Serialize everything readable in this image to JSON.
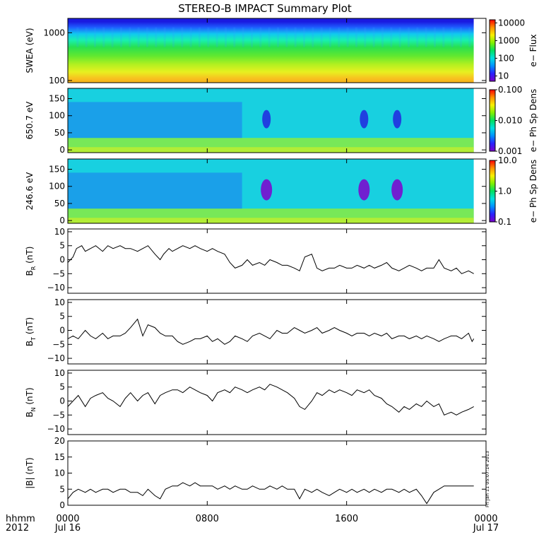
{
  "title": "STEREO-B IMPACT Summary Plot",
  "stamp": "Fri Jan 11 05:07:14 2013",
  "time_axis": {
    "corner_top": "hhmm",
    "corner_bottom": "2012",
    "ticks": [
      {
        "t": 0,
        "label": "0000",
        "sub": "Jul 16"
      },
      {
        "t": 8,
        "label": "0800",
        "sub": ""
      },
      {
        "t": 16,
        "label": "1600",
        "sub": ""
      },
      {
        "t": 24,
        "label": "0000",
        "sub": "Jul 17"
      }
    ],
    "range_hours": [
      0,
      24
    ],
    "data_end_hours": 23.3
  },
  "chart_data": [
    {
      "type": "heatmap",
      "ylabel": "SWEA (eV)",
      "yscale": "log",
      "ylim": [
        90,
        2000
      ],
      "yticks": [
        {
          "v": 100,
          "label": "100"
        },
        {
          "v": 1000,
          "label": "1000"
        }
      ],
      "colorbar": {
        "label": "e− Flux",
        "scale": "log",
        "range": [
          5,
          15000
        ],
        "ticks": [
          {
            "v": 10,
            "label": "10"
          },
          {
            "v": 100,
            "label": "100"
          },
          {
            "v": 1000,
            "label": "1000"
          },
          {
            "v": 10000,
            "label": "10000"
          }
        ]
      },
      "color_by_energy": [
        {
          "energy": 1700,
          "color": "#1a1ae0"
        },
        {
          "energy": 1300,
          "color": "#1e5cff"
        },
        {
          "energy": 950,
          "color": "#10c8f0"
        },
        {
          "energy": 700,
          "color": "#18f0b0"
        },
        {
          "energy": 500,
          "color": "#28e050"
        },
        {
          "energy": 330,
          "color": "#60e830"
        },
        {
          "energy": 220,
          "color": "#b0f020"
        },
        {
          "energy": 150,
          "color": "#e8f020"
        },
        {
          "energy": 110,
          "color": "#f8c020"
        },
        {
          "energy": 90,
          "color": "#f8b018"
        }
      ]
    },
    {
      "type": "heatmap",
      "ylabel": "650.7 eV",
      "ylim": [
        -8,
        180
      ],
      "yticks": [
        {
          "v": 0,
          "label": "0"
        },
        {
          "v": 50,
          "label": "50"
        },
        {
          "v": 100,
          "label": "100"
        },
        {
          "v": 150,
          "label": "150"
        }
      ],
      "colorbar": {
        "label": "e− Ph Sp Dens",
        "scale": "log",
        "range": [
          0.001,
          0.1
        ],
        "ticks": [
          {
            "v": 0.001,
            "label": "0.001"
          },
          {
            "v": 0.01,
            "label": "0.010"
          },
          {
            "v": 0.1,
            "label": "0.100"
          }
        ]
      },
      "background_color": "#18d0e0",
      "low_pitch_band_color": "#78e858",
      "dropouts_hours": [
        11.4,
        17.0,
        18.9
      ]
    },
    {
      "type": "heatmap",
      "ylabel": "246.6 eV",
      "ylim": [
        -8,
        180
      ],
      "yticks": [
        {
          "v": 0,
          "label": "0"
        },
        {
          "v": 50,
          "label": "50"
        },
        {
          "v": 100,
          "label": "100"
        },
        {
          "v": 150,
          "label": "150"
        }
      ],
      "colorbar": {
        "label": "e− Ph Sp Dens",
        "scale": "log",
        "range": [
          0.1,
          10
        ],
        "ticks": [
          {
            "v": 0.1,
            "label": "0.1"
          },
          {
            "v": 1,
            "label": "1.0"
          },
          {
            "v": 10,
            "label": "10.0"
          }
        ]
      },
      "background_color": "#18d0e0",
      "low_pitch_band_color": "#78e858",
      "dropouts_hours": [
        11.4,
        17.0,
        18.9
      ]
    },
    {
      "type": "line",
      "ylabel_main": "B",
      "ylabel_sub": "R",
      "ylabel_unit": "(nT)",
      "ylim": [
        -12,
        11
      ],
      "yticks": [
        {
          "v": -10,
          "label": "−10"
        },
        {
          "v": -5,
          "label": "−5"
        },
        {
          "v": 0,
          "label": "0"
        },
        {
          "v": 5,
          "label": "5"
        },
        {
          "v": 10,
          "label": "10"
        }
      ],
      "x": [
        0,
        0.3,
        0.5,
        0.8,
        1,
        1.3,
        1.6,
        2,
        2.3,
        2.6,
        3,
        3.3,
        3.6,
        4,
        4.3,
        4.6,
        5,
        5.3,
        5.5,
        5.8,
        6,
        6.3,
        6.6,
        7,
        7.3,
        7.6,
        8,
        8.3,
        8.6,
        9,
        9.3,
        9.6,
        10,
        10.3,
        10.6,
        11,
        11.3,
        11.6,
        12,
        12.3,
        12.6,
        13,
        13.3,
        13.6,
        14,
        14.3,
        14.6,
        15,
        15.3,
        15.6,
        16,
        16.3,
        16.6,
        17,
        17.3,
        17.6,
        18,
        18.3,
        18.6,
        19,
        19.3,
        19.6,
        20,
        20.3,
        20.6,
        21,
        21.3,
        21.6,
        22,
        22.3,
        22.6,
        23,
        23.3
      ],
      "values": [
        -1,
        1,
        4,
        5,
        3,
        4,
        5,
        3,
        5,
        4,
        5,
        4,
        4,
        3,
        4,
        5,
        2,
        0,
        2,
        4,
        3,
        4,
        5,
        4,
        5,
        4,
        3,
        4,
        3,
        2,
        -1,
        -3,
        -2,
        0,
        -2,
        -1,
        -2,
        0,
        -1,
        -2,
        -2,
        -3,
        -4,
        1,
        2,
        -3,
        -4,
        -3,
        -3,
        -2,
        -3,
        -3,
        -2,
        -3,
        -2,
        -3,
        -2,
        -1,
        -3,
        -4,
        -3,
        -2,
        -3,
        -4,
        -3,
        -3,
        0,
        -3,
        -4,
        -3,
        -5,
        -4,
        -5
      ]
    },
    {
      "type": "line",
      "ylabel_main": "B",
      "ylabel_sub": "T",
      "ylabel_unit": "(nT)",
      "ylim": [
        -12,
        11
      ],
      "yticks": [
        {
          "v": -10,
          "label": "−10"
        },
        {
          "v": -5,
          "label": "−5"
        },
        {
          "v": 0,
          "label": "0"
        },
        {
          "v": 5,
          "label": "5"
        },
        {
          "v": 10,
          "label": "10"
        }
      ],
      "x": [
        0,
        0.3,
        0.6,
        1,
        1.3,
        1.6,
        2,
        2.3,
        2.6,
        3,
        3.3,
        3.6,
        4,
        4.3,
        4.6,
        5,
        5.3,
        5.6,
        6,
        6.3,
        6.6,
        7,
        7.3,
        7.6,
        8,
        8.3,
        8.6,
        9,
        9.3,
        9.6,
        10,
        10.3,
        10.6,
        11,
        11.3,
        11.6,
        12,
        12.3,
        12.6,
        13,
        13.3,
        13.6,
        14,
        14.3,
        14.6,
        15,
        15.3,
        15.6,
        16,
        16.3,
        16.6,
        17,
        17.3,
        17.6,
        18,
        18.3,
        18.6,
        19,
        19.3,
        19.6,
        20,
        20.3,
        20.6,
        21,
        21.3,
        21.6,
        22,
        22.3,
        22.6,
        23,
        23.2,
        23.3
      ],
      "values": [
        -3,
        -2,
        -3,
        0,
        -2,
        -3,
        -1,
        -3,
        -2,
        -2,
        -1,
        1,
        4,
        -2,
        2,
        1,
        -1,
        -2,
        -2,
        -4,
        -5,
        -4,
        -3,
        -3,
        -2,
        -4,
        -3,
        -5,
        -4,
        -2,
        -3,
        -4,
        -2,
        -1,
        -2,
        -3,
        0,
        -1,
        -1,
        1,
        0,
        -1,
        0,
        1,
        -1,
        0,
        1,
        0,
        -1,
        -2,
        -1,
        -1,
        -2,
        -1,
        -2,
        -1,
        -3,
        -2,
        -2,
        -3,
        -2,
        -3,
        -2,
        -3,
        -4,
        -3,
        -2,
        -2,
        -3,
        -1,
        -4,
        -3
      ]
    },
    {
      "type": "line",
      "ylabel_main": "B",
      "ylabel_sub": "N",
      "ylabel_unit": "(nT)",
      "ylim": [
        -12,
        11
      ],
      "yticks": [
        {
          "v": -10,
          "label": "−10"
        },
        {
          "v": -5,
          "label": "−5"
        },
        {
          "v": 0,
          "label": "0"
        },
        {
          "v": 5,
          "label": "5"
        },
        {
          "v": 10,
          "label": "10"
        }
      ],
      "x": [
        0,
        0.3,
        0.6,
        1,
        1.3,
        1.6,
        2,
        2.3,
        2.6,
        3,
        3.3,
        3.6,
        4,
        4.3,
        4.6,
        5,
        5.3,
        5.6,
        6,
        6.3,
        6.6,
        7,
        7.3,
        7.6,
        8,
        8.3,
        8.6,
        9,
        9.3,
        9.6,
        10,
        10.3,
        10.6,
        11,
        11.3,
        11.6,
        12,
        12.3,
        12.6,
        13,
        13.3,
        13.6,
        14,
        14.3,
        14.6,
        15,
        15.3,
        15.6,
        16,
        16.3,
        16.6,
        17,
        17.3,
        17.6,
        18,
        18.3,
        18.6,
        19,
        19.3,
        19.6,
        20,
        20.3,
        20.6,
        21,
        21.3,
        21.6,
        22,
        22.3,
        22.6,
        23,
        23.3
      ],
      "values": [
        -2,
        0,
        2,
        -2,
        1,
        2,
        3,
        1,
        0,
        -2,
        1,
        3,
        0,
        2,
        3,
        -1,
        2,
        3,
        4,
        4,
        3,
        5,
        4,
        3,
        2,
        0,
        3,
        4,
        3,
        5,
        4,
        3,
        4,
        5,
        4,
        6,
        5,
        4,
        3,
        1,
        -2,
        -3,
        0,
        3,
        2,
        4,
        3,
        4,
        3,
        2,
        4,
        3,
        4,
        2,
        1,
        -1,
        -2,
        -4,
        -2,
        -3,
        -1,
        -2,
        0,
        -2,
        -1,
        -5,
        -4,
        -5,
        -4,
        -3,
        -2
      ]
    },
    {
      "type": "line",
      "ylabel_main": "|B|",
      "ylabel_sub": "",
      "ylabel_unit": "(nT)",
      "ylim": [
        0,
        20
      ],
      "yticks": [
        {
          "v": 0,
          "label": "0"
        },
        {
          "v": 5,
          "label": "5"
        },
        {
          "v": 10,
          "label": "10"
        },
        {
          "v": 15,
          "label": "15"
        },
        {
          "v": 20,
          "label": "20"
        }
      ],
      "x": [
        0,
        0.3,
        0.6,
        1,
        1.3,
        1.6,
        2,
        2.3,
        2.6,
        3,
        3.3,
        3.6,
        4,
        4.3,
        4.6,
        5,
        5.3,
        5.6,
        6,
        6.3,
        6.6,
        7,
        7.3,
        7.6,
        8,
        8.3,
        8.6,
        9,
        9.3,
        9.6,
        10,
        10.3,
        10.6,
        11,
        11.3,
        11.6,
        12,
        12.3,
        12.6,
        13,
        13.3,
        13.6,
        14,
        14.3,
        14.6,
        15,
        15.3,
        15.6,
        16,
        16.3,
        16.6,
        17,
        17.3,
        17.6,
        18,
        18.3,
        18.6,
        19,
        19.3,
        19.6,
        20,
        20.3,
        20.6,
        21,
        21.3,
        21.6,
        22,
        22.3,
        22.6,
        23,
        23.3
      ],
      "values": [
        2,
        4,
        5,
        4,
        5,
        4,
        5,
        5,
        4,
        5,
        5,
        4,
        4,
        3,
        5,
        3,
        2,
        5,
        6,
        6,
        7,
        6,
        7,
        6,
        6,
        6,
        5,
        6,
        5,
        6,
        5,
        5,
        6,
        5,
        5,
        6,
        5,
        6,
        5,
        5,
        2,
        5,
        4,
        5,
        4,
        3,
        4,
        5,
        4,
        5,
        4,
        5,
        4,
        5,
        4,
        5,
        5,
        4,
        5,
        4,
        5,
        3,
        0.5,
        4,
        5,
        6,
        6,
        6,
        6,
        6,
        6
      ]
    }
  ]
}
